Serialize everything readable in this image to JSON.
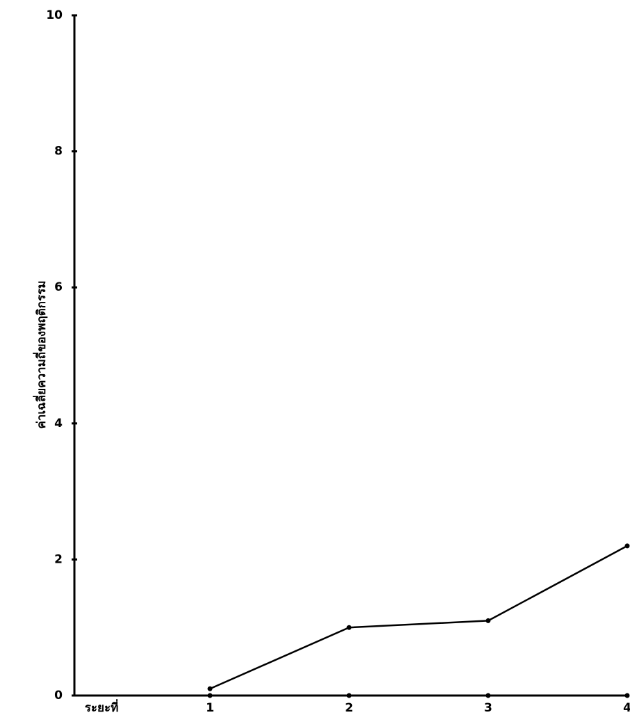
{
  "chart_data": {
    "type": "line",
    "y_label": "ค่าเฉลี่ยความถี่ของพฤติกรรม",
    "x_label": "ระยะที่",
    "x": [
      1,
      2,
      3,
      4
    ],
    "series": [
      {
        "color": "#000000",
        "values": [
          0.1,
          1.0,
          1.1,
          2.2
        ]
      }
    ],
    "xlim": [
      0,
      4
    ],
    "xticks": [
      1,
      2,
      3,
      4
    ],
    "ylim": [
      0,
      10
    ],
    "yticks": [
      0,
      2,
      4,
      6,
      8,
      10
    ]
  }
}
